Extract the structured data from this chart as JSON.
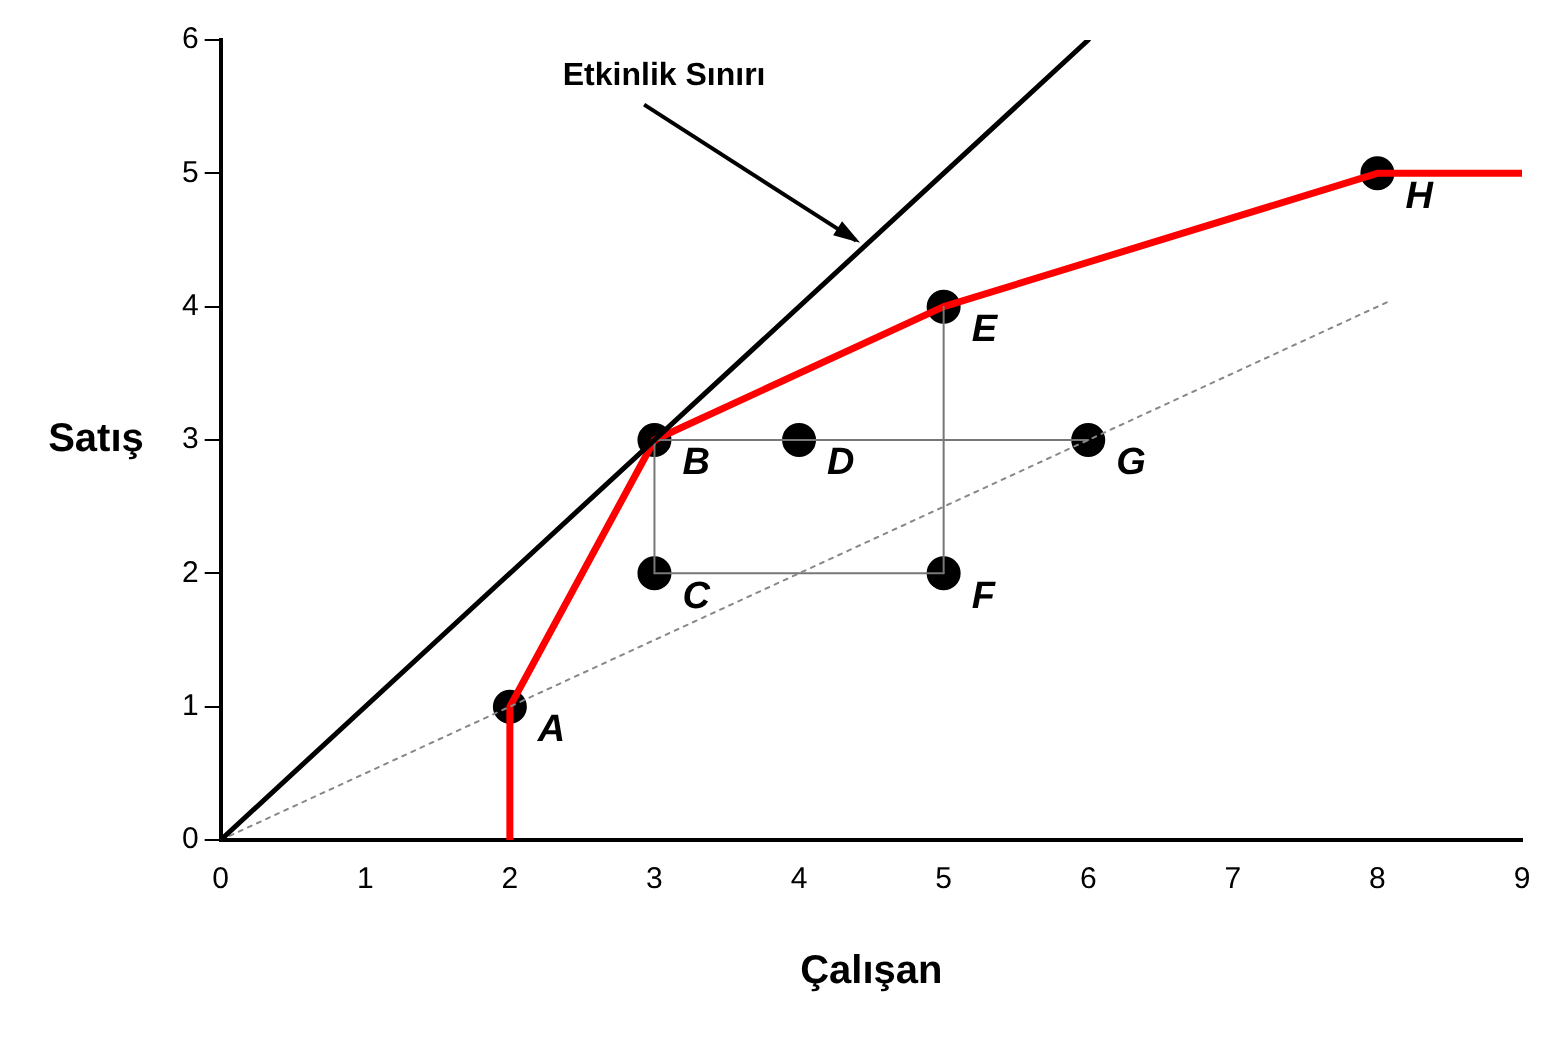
{
  "chart_data": {
    "type": "line",
    "xlabel": "Çalışan",
    "ylabel": "Satış",
    "xlim": [
      0,
      9
    ],
    "ylim": [
      0,
      6
    ],
    "xticks": [
      0,
      1,
      2,
      3,
      4,
      5,
      6,
      7,
      8,
      9
    ],
    "yticks": [
      0,
      1,
      2,
      3,
      4,
      5,
      6
    ],
    "grid": false,
    "legend": false,
    "series": [
      {
        "color": "#000000",
        "x": [
          0,
          6
        ],
        "values": [
          0,
          6
        ],
        "line_style": "solid",
        "marker": "none"
      },
      {
        "color": "#888888",
        "x": [
          0,
          8.1
        ],
        "values": [
          0,
          4.05
        ],
        "line_style": "dotted",
        "marker": "none"
      },
      {
        "type": "line",
        "color": "#777777",
        "x": [
          3,
          5
        ],
        "values": [
          2,
          2
        ],
        "line_style": "solid",
        "marker": "none"
      },
      {
        "type": "line",
        "color": "#777777",
        "x": [
          3,
          6
        ],
        "values": [
          3,
          3
        ],
        "line_style": "solid",
        "marker": "none"
      },
      {
        "type": "line",
        "color": "#777777",
        "x": [
          3,
          3
        ],
        "values": [
          2,
          3
        ],
        "line_style": "solid",
        "marker": "none"
      },
      {
        "type": "line",
        "color": "#777777",
        "x": [
          5,
          5
        ],
        "values": [
          2,
          4
        ],
        "line_style": "solid",
        "marker": "none"
      },
      {
        "color": "#ff0000",
        "x": [
          2,
          2,
          3,
          5,
          8,
          9
        ],
        "values": [
          0,
          1,
          3,
          4,
          5,
          5
        ],
        "line_style": "solid",
        "marker": "none"
      },
      {
        "type": "scatter",
        "color": "#000000",
        "x": [
          2,
          3,
          3,
          4,
          5,
          5,
          6,
          8
        ],
        "values": [
          1,
          3,
          2,
          3,
          4,
          2,
          3,
          5
        ],
        "marker": "circle"
      }
    ],
    "annotations": [
      {
        "text": "Etkinlik Sınırı",
        "x": 4.45,
        "y": 4.45
      },
      {
        "text": "A",
        "x": 2,
        "y": 1
      },
      {
        "text": "B",
        "x": 3,
        "y": 3
      },
      {
        "text": "C",
        "x": 3,
        "y": 2
      },
      {
        "text": "D",
        "x": 4,
        "y": 3
      },
      {
        "text": "E",
        "x": 5,
        "y": 4
      },
      {
        "text": "F",
        "x": 5,
        "y": 2
      },
      {
        "text": "G",
        "x": 6,
        "y": 3
      },
      {
        "text": "H",
        "x": 8,
        "y": 5
      }
    ]
  }
}
